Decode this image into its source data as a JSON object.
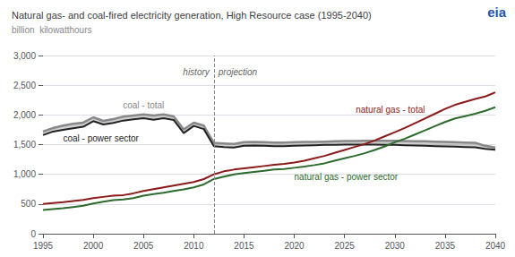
{
  "chart_data": {
    "type": "line",
    "title": "Natural gas- and coal-fired electricity generation, High Resource case (1995-2040)",
    "ylabel": "billion  kilowatthours",
    "x": [
      1995,
      1996,
      1997,
      1998,
      1999,
      2000,
      2001,
      2002,
      2003,
      2004,
      2005,
      2006,
      2007,
      2008,
      2009,
      2010,
      2011,
      2012,
      2013,
      2014,
      2015,
      2016,
      2017,
      2018,
      2019,
      2020,
      2021,
      2022,
      2023,
      2024,
      2025,
      2026,
      2027,
      2028,
      2029,
      2030,
      2031,
      2032,
      2033,
      2034,
      2035,
      2036,
      2037,
      2038,
      2039,
      2040
    ],
    "series": [
      {
        "name": "coal - total",
        "color": "#888888",
        "values": [
          1720,
          1780,
          1820,
          1850,
          1870,
          1960,
          1900,
          1930,
          1970,
          1990,
          2010,
          1990,
          2010,
          1975,
          1755,
          1870,
          1820,
          1530,
          1520,
          1510,
          1540,
          1545,
          1540,
          1535,
          1535,
          1540,
          1545,
          1545,
          1550,
          1555,
          1560,
          1560,
          1565,
          1565,
          1565,
          1565,
          1560,
          1555,
          1555,
          1550,
          1545,
          1540,
          1535,
          1530,
          1480,
          1450
        ]
      },
      {
        "name": "coal - power sector",
        "color": "#222222",
        "values": [
          1660,
          1720,
          1750,
          1775,
          1800,
          1895,
          1840,
          1865,
          1905,
          1925,
          1945,
          1920,
          1945,
          1915,
          1695,
          1815,
          1762,
          1475,
          1460,
          1450,
          1480,
          1485,
          1480,
          1475,
          1475,
          1480,
          1485,
          1490,
          1495,
          1498,
          1500,
          1500,
          1500,
          1500,
          1498,
          1495,
          1490,
          1485,
          1480,
          1475,
          1470,
          1465,
          1460,
          1455,
          1430,
          1415
        ]
      },
      {
        "name": "natural gas - total",
        "color": "#8b1a1a",
        "values": [
          500,
          515,
          530,
          550,
          570,
          600,
          620,
          640,
          650,
          680,
          720,
          750,
          780,
          810,
          840,
          870,
          920,
          1000,
          1050,
          1080,
          1100,
          1120,
          1140,
          1160,
          1175,
          1200,
          1230,
          1270,
          1310,
          1360,
          1410,
          1460,
          1510,
          1570,
          1640,
          1710,
          1780,
          1860,
          1940,
          2020,
          2100,
          2170,
          2220,
          2270,
          2310,
          2380
        ]
      },
      {
        "name": "natural gas - power sector",
        "color": "#2d6a2d",
        "values": [
          400,
          415,
          430,
          450,
          470,
          510,
          540,
          565,
          575,
          600,
          640,
          668,
          690,
          720,
          745,
          780,
          830,
          920,
          960,
          1000,
          1020,
          1040,
          1060,
          1080,
          1090,
          1110,
          1130,
          1155,
          1185,
          1230,
          1270,
          1310,
          1355,
          1410,
          1470,
          1540,
          1600,
          1670,
          1740,
          1810,
          1880,
          1940,
          1980,
          2020,
          2070,
          2130
        ]
      }
    ],
    "xlim": [
      1995,
      2040
    ],
    "xticks": [
      1995,
      2000,
      2005,
      2010,
      2015,
      2020,
      2025,
      2030,
      2035,
      2040
    ],
    "ylim": [
      0,
      3000
    ],
    "yticks": [
      0,
      500,
      {
        "value": 1000,
        "label": "1,000"
      },
      {
        "value": 1500,
        "label": "1,500"
      },
      {
        "value": 2000,
        "label": "2,000"
      },
      {
        "value": 2500,
        "label": "2,500"
      },
      {
        "value": 3000,
        "label": "3,000"
      }
    ],
    "grid": true,
    "annotations": [
      {
        "text": "history",
        "x": 2012,
        "y": 2720
      },
      {
        "text": "projection",
        "x": 2012,
        "y": 2720
      },
      {
        "text": "eia",
        "color": "#2255aa"
      }
    ]
  }
}
